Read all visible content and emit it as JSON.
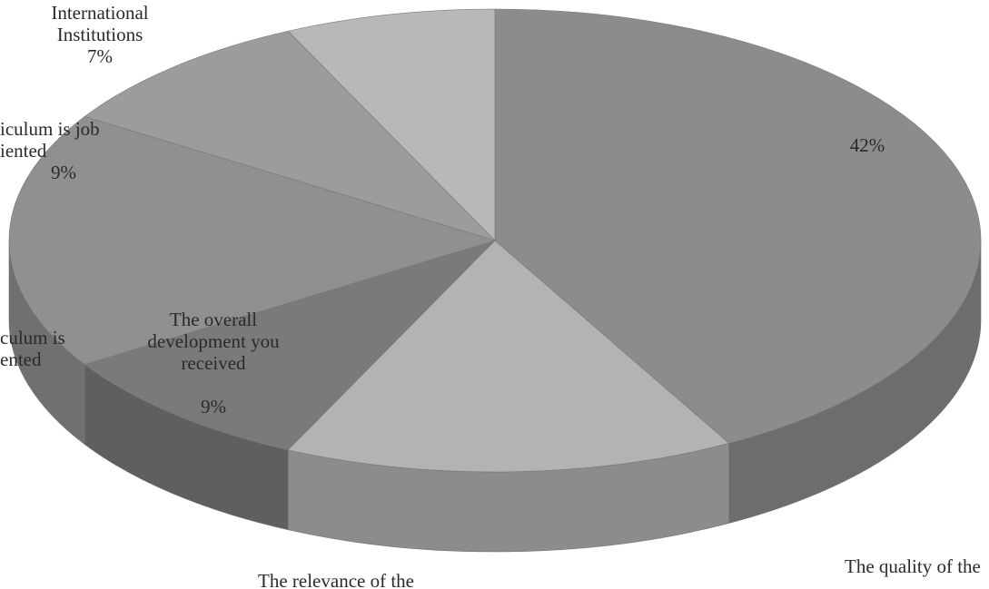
{
  "chart_data": {
    "type": "pie3d",
    "categories": [
      "The quality of the",
      "The relevance of the",
      "The overall development you received",
      "culum is ented",
      "iculum is job iented",
      "International Institutions"
    ],
    "values": [
      42,
      15,
      9,
      18,
      9,
      7
    ],
    "value_labels": [
      "42%",
      null,
      "9%",
      null,
      "9%",
      "7%"
    ],
    "colors": [
      "#8c8c8c",
      "#b3b3b3",
      "#7a7a7a",
      "#909090",
      "#9c9c9c",
      "#b8b8b8"
    ]
  }
}
